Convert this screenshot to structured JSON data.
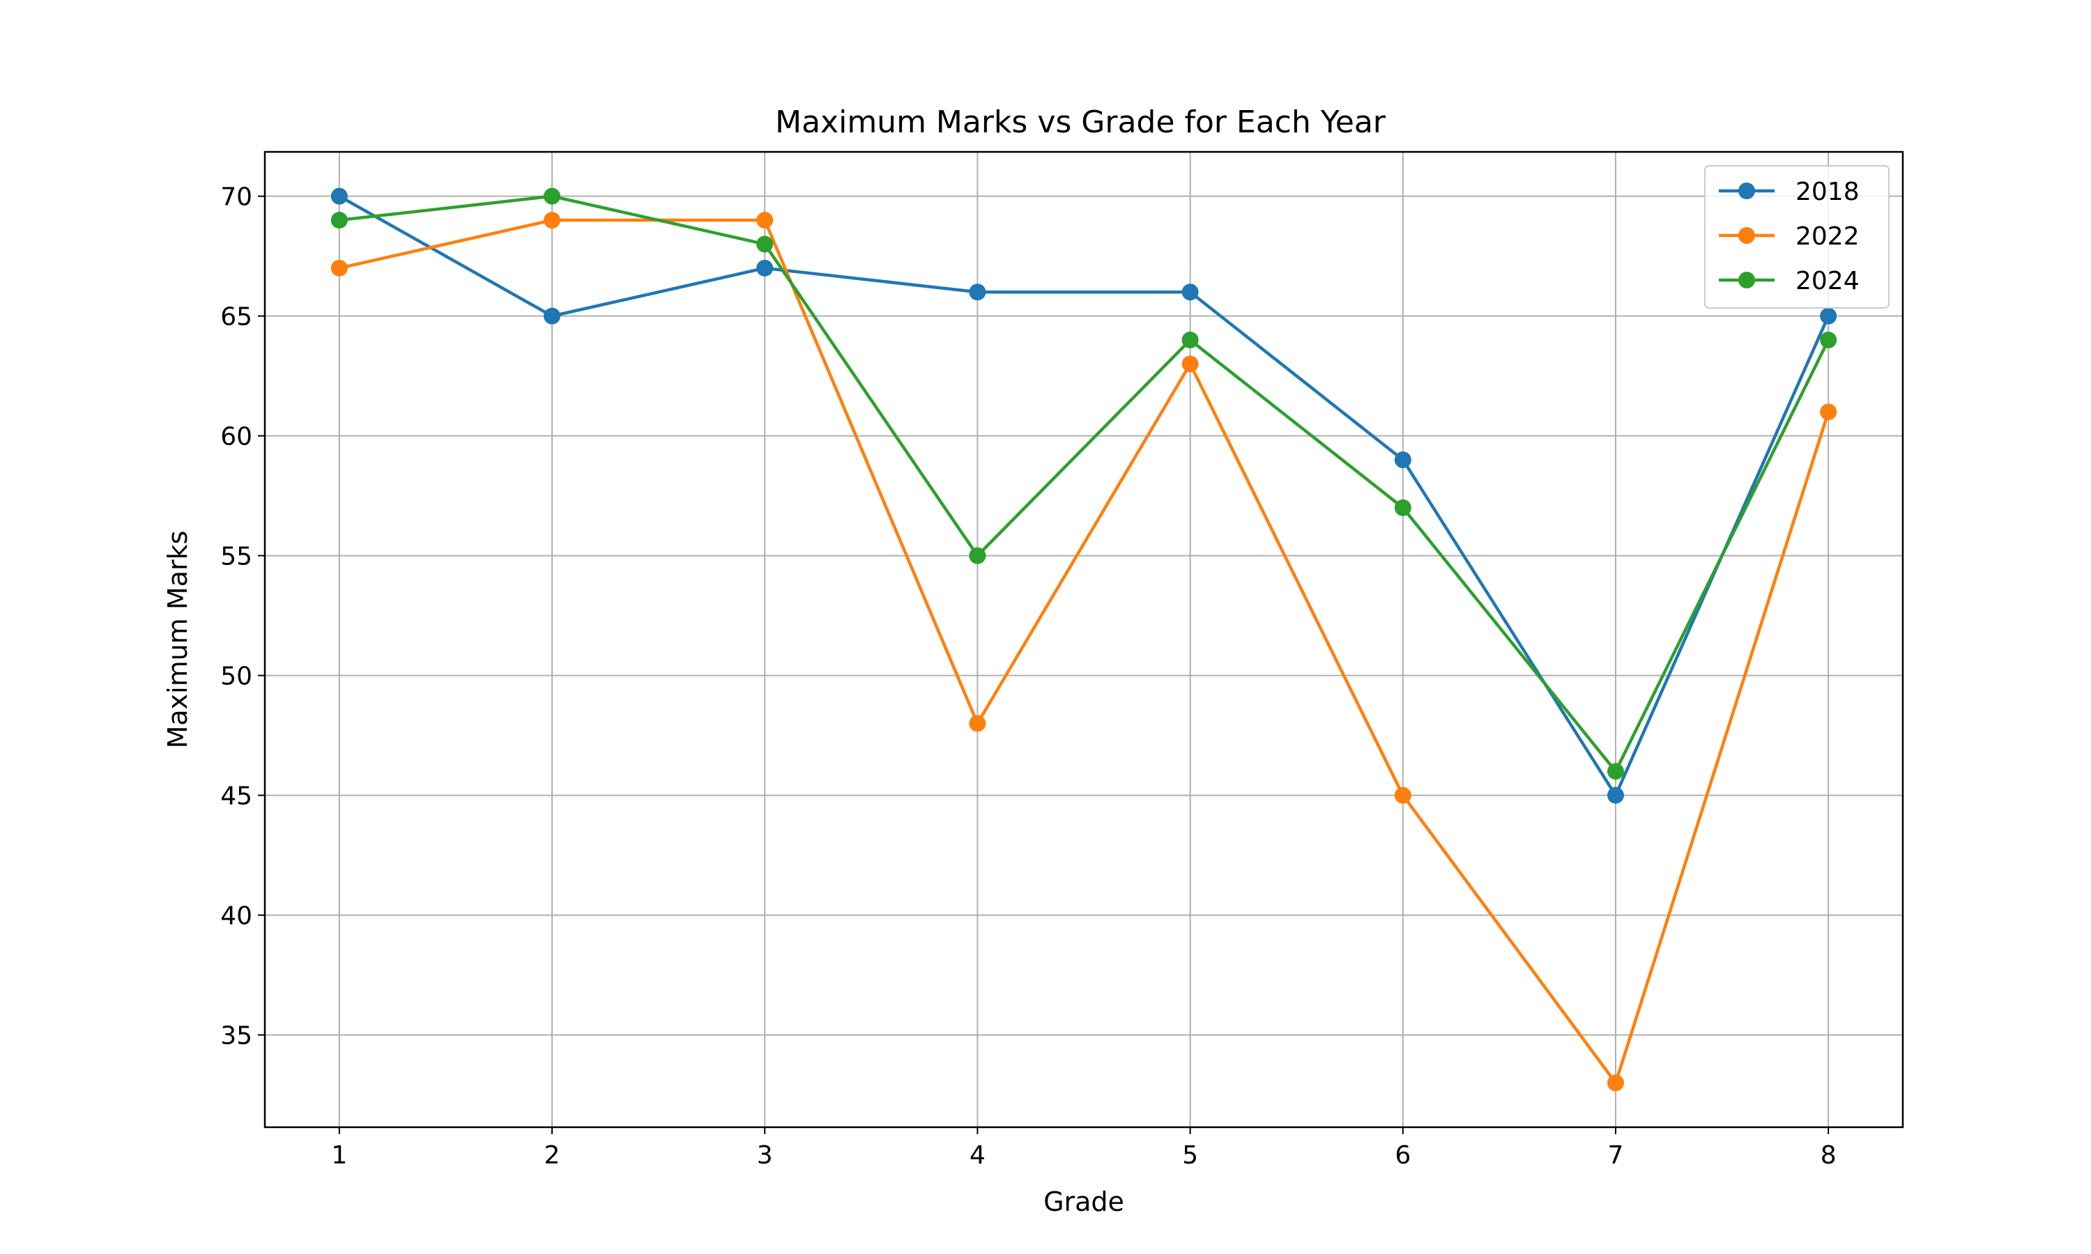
{
  "chart_data": {
    "type": "line",
    "title": "Maximum Marks vs Grade for Each Year",
    "xlabel": "Grade",
    "ylabel": "Maximum Marks",
    "x": [
      1,
      2,
      3,
      4,
      5,
      6,
      7,
      8
    ],
    "xticks": [
      "1",
      "2",
      "3",
      "4",
      "5",
      "6",
      "7",
      "8"
    ],
    "yticks": [
      "35",
      "40",
      "45",
      "50",
      "55",
      "60",
      "65",
      "70"
    ],
    "xlim": [
      0.65,
      8.35
    ],
    "ylim": [
      31.15,
      71.85
    ],
    "grid": true,
    "legend_position": "top-right",
    "series": [
      {
        "name": "2018",
        "color": "#1f77b4",
        "values": [
          70,
          65,
          67,
          66,
          66,
          59,
          45,
          65
        ]
      },
      {
        "name": "2022",
        "color": "#ff7f0e",
        "values": [
          67,
          69,
          69,
          48,
          63,
          45,
          33,
          61
        ]
      },
      {
        "name": "2024",
        "color": "#2ca02c",
        "values": [
          69,
          70,
          68,
          55,
          64,
          57,
          46,
          64
        ]
      }
    ]
  }
}
